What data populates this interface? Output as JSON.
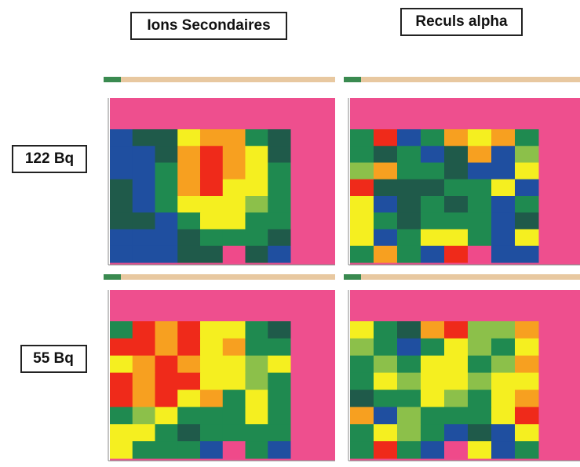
{
  "header": {
    "columns": [
      "Ions Secondaires",
      "Reculs alpha"
    ]
  },
  "rows": [
    "122 Bq",
    "55 Bq"
  ],
  "panels": [
    {
      "cells": [
        [
          "#1f4fa0",
          "#1f5a4a",
          "#1f5a4a",
          "#f5ef20",
          "#f7a020",
          "#f7a020",
          "#1f8a50",
          "#1f5a4a"
        ],
        [
          "#1f4fa0",
          "#1f4fa0",
          "#1f5a4a",
          "#f7a020",
          "#ef2a1a",
          "#f7a020",
          "#f5ef20",
          "#1f5a4a"
        ],
        [
          "#1f4fa0",
          "#1f4fa0",
          "#1f8a50",
          "#f7a020",
          "#ef2a1a",
          "#f7a020",
          "#f5ef20",
          "#1f8a50"
        ],
        [
          "#1f5a4a",
          "#1f4fa0",
          "#1f8a50",
          "#f7a020",
          "#ef2a1a",
          "#f5ef20",
          "#f5ef20",
          "#1f8a50"
        ],
        [
          "#1f5a4a",
          "#1f4fa0",
          "#1f8a50",
          "#f5ef20",
          "#f5ef20",
          "#f5ef20",
          "#8cc04a",
          "#1f8a50"
        ],
        [
          "#1f5a4a",
          "#1f5a4a",
          "#1f4fa0",
          "#1f8a50",
          "#f5ef20",
          "#f5ef20",
          "#1f8a50",
          "#1f8a50"
        ],
        [
          "#1f4fa0",
          "#1f4fa0",
          "#1f4fa0",
          "#1f5a4a",
          "#1f8a50",
          "#1f8a50",
          "#1f8a50",
          "#1f5a4a"
        ],
        [
          "#1f4fa0",
          "#1f4fa0",
          "#1f4fa0",
          "#1f5a4a",
          "#1f5a4a",
          "#ef4a8a",
          "#1f5a4a",
          "#1f4fa0"
        ]
      ]
    },
    {
      "cells": [
        [
          "#1f8a50",
          "#ef2a1a",
          "#1f4fa0",
          "#1f8a50",
          "#f7a020",
          "#f5ef20",
          "#f7a020",
          "#1f8a50"
        ],
        [
          "#1f8a50",
          "#1f5a4a",
          "#1f8a50",
          "#1f4fa0",
          "#1f5a4a",
          "#f7a020",
          "#1f4fa0",
          "#8cc04a"
        ],
        [
          "#8cc04a",
          "#f7a020",
          "#1f8a50",
          "#1f8a50",
          "#1f5a4a",
          "#1f4fa0",
          "#1f4fa0",
          "#f5ef20"
        ],
        [
          "#ef2a1a",
          "#1f5a4a",
          "#1f5a4a",
          "#1f5a4a",
          "#1f8a50",
          "#1f8a50",
          "#f5ef20",
          "#1f4fa0"
        ],
        [
          "#f5ef20",
          "#1f4fa0",
          "#1f5a4a",
          "#1f8a50",
          "#1f5a4a",
          "#1f8a50",
          "#1f4fa0",
          "#1f8a50"
        ],
        [
          "#f5ef20",
          "#1f8a50",
          "#1f5a4a",
          "#1f8a50",
          "#1f8a50",
          "#1f8a50",
          "#1f4fa0",
          "#1f5a4a"
        ],
        [
          "#f5ef20",
          "#1f4fa0",
          "#1f8a50",
          "#f5ef20",
          "#f5ef20",
          "#1f8a50",
          "#1f4fa0",
          "#f5ef20"
        ],
        [
          "#1f8a50",
          "#f7a020",
          "#1f8a50",
          "#1f4fa0",
          "#ef2a1a",
          "#ef4a8a",
          "#1f4fa0",
          "#1f4fa0"
        ]
      ]
    },
    {
      "cells": [
        [
          "#1f8a50",
          "#ef2a1a",
          "#f7a020",
          "#ef2a1a",
          "#f5ef20",
          "#f5ef20",
          "#1f8a50",
          "#1f5a4a"
        ],
        [
          "#ef2a1a",
          "#ef2a1a",
          "#f7a020",
          "#ef2a1a",
          "#f5ef20",
          "#f7a020",
          "#1f8a50",
          "#1f8a50"
        ],
        [
          "#f5ef20",
          "#f7a020",
          "#ef2a1a",
          "#f7a020",
          "#f5ef20",
          "#f5ef20",
          "#8cc04a",
          "#f5ef20"
        ],
        [
          "#ef2a1a",
          "#f7a020",
          "#ef2a1a",
          "#ef2a1a",
          "#f5ef20",
          "#f5ef20",
          "#8cc04a",
          "#1f8a50"
        ],
        [
          "#ef2a1a",
          "#f7a020",
          "#ef2a1a",
          "#f5ef20",
          "#f7a020",
          "#1f8a50",
          "#f5ef20",
          "#1f8a50"
        ],
        [
          "#1f8a50",
          "#8cc04a",
          "#f5ef20",
          "#1f8a50",
          "#1f8a50",
          "#1f8a50",
          "#f5ef20",
          "#1f8a50"
        ],
        [
          "#f5ef20",
          "#f5ef20",
          "#1f8a50",
          "#1f5a4a",
          "#1f8a50",
          "#1f8a50",
          "#1f8a50",
          "#1f8a50"
        ],
        [
          "#f5ef20",
          "#1f8a50",
          "#1f8a50",
          "#1f8a50",
          "#1f4fa0",
          "#ef4a8a",
          "#1f8a50",
          "#1f4fa0"
        ]
      ]
    },
    {
      "cells": [
        [
          "#f5ef20",
          "#1f8a50",
          "#1f5a4a",
          "#f7a020",
          "#ef2a1a",
          "#8cc04a",
          "#8cc04a",
          "#f7a020"
        ],
        [
          "#8cc04a",
          "#1f8a50",
          "#1f4fa0",
          "#1f8a50",
          "#f5ef20",
          "#8cc04a",
          "#1f8a50",
          "#f5ef20"
        ],
        [
          "#1f8a50",
          "#8cc04a",
          "#1f8a50",
          "#f5ef20",
          "#f5ef20",
          "#1f8a50",
          "#8cc04a",
          "#f7a020"
        ],
        [
          "#1f8a50",
          "#f5ef20",
          "#8cc04a",
          "#f5ef20",
          "#f5ef20",
          "#8cc04a",
          "#f5ef20",
          "#f5ef20"
        ],
        [
          "#1f5a4a",
          "#1f8a50",
          "#1f8a50",
          "#f5ef20",
          "#8cc04a",
          "#1f8a50",
          "#f5ef20",
          "#f7a020"
        ],
        [
          "#f7a020",
          "#1f4fa0",
          "#8cc04a",
          "#1f8a50",
          "#1f8a50",
          "#1f8a50",
          "#f5ef20",
          "#ef2a1a"
        ],
        [
          "#1f8a50",
          "#f5ef20",
          "#8cc04a",
          "#1f8a50",
          "#1f4fa0",
          "#1f5a4a",
          "#1f4fa0",
          "#f5ef20"
        ],
        [
          "#1f8a50",
          "#ef2a1a",
          "#1f8a50",
          "#1f4fa0",
          "#ef4a8a",
          "#f5ef20",
          "#1f4fa0",
          "#1f8a50"
        ]
      ]
    }
  ]
}
